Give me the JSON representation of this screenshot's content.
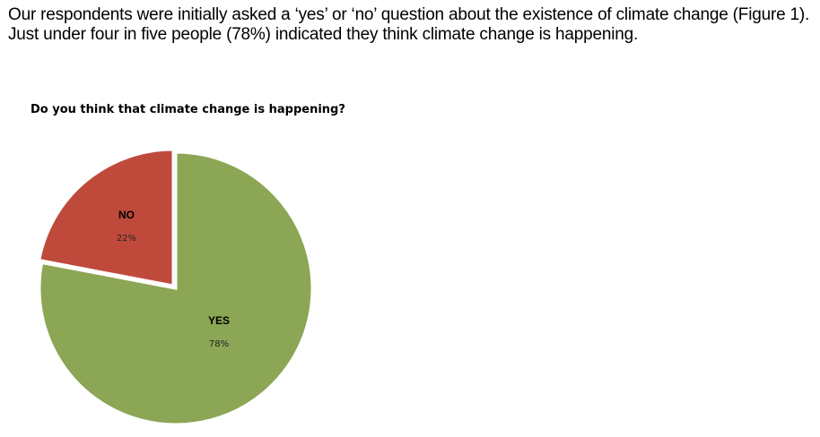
{
  "intro_text": "Our respondents were initially asked a ‘yes’ or ‘no’ question about the existence of climate change (Figure 1). Just under four in five people (78%) indicated they think climate change is happening.",
  "chart_data": {
    "type": "pie",
    "title": "Do you think that climate change is happening?",
    "categories": [
      "YES",
      "NO"
    ],
    "values": [
      78,
      22
    ],
    "value_labels": [
      "78%",
      "22%"
    ],
    "colors": [
      "#8ba654",
      "#bf4a3c"
    ]
  }
}
